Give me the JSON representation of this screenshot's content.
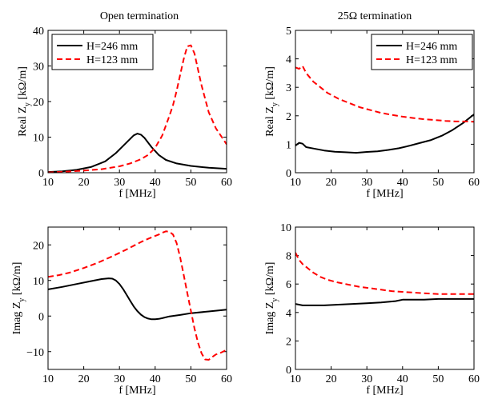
{
  "chart_data": [
    {
      "type": "line",
      "title": "Open termination",
      "xlabel": "f [MHz]",
      "ylabel": "Real Z_y [kΩ/m]",
      "ylabel_parts": [
        "Real Z",
        "y",
        "[kΩ/m]"
      ],
      "xlim": [
        10,
        60
      ],
      "ylim": [
        0,
        40
      ],
      "xticks": [
        "10",
        "20",
        "30",
        "40",
        "50",
        "60"
      ],
      "yticks": [
        "0",
        "10",
        "20",
        "30",
        "40"
      ],
      "legend": "top-left",
      "series": [
        {
          "name": "H=246 mm",
          "color": "#000000",
          "dash": "solid",
          "x": [
            10,
            14,
            18,
            22,
            26,
            29,
            31,
            33,
            34,
            35,
            36,
            37,
            39,
            41,
            43,
            46,
            50,
            55,
            60
          ],
          "y": [
            0.2,
            0.4,
            0.8,
            1.6,
            3.2,
            5.5,
            7.5,
            9.5,
            10.5,
            11.0,
            10.7,
            9.8,
            7.2,
            5.0,
            3.6,
            2.6,
            1.9,
            1.4,
            1.1
          ]
        },
        {
          "name": "H=123 mm",
          "color": "#ff0000",
          "dash": "dashed",
          "x": [
            10,
            15,
            20,
            25,
            30,
            33,
            36,
            38,
            40,
            42,
            44,
            45,
            46,
            47,
            48,
            49,
            50,
            51,
            52,
            53,
            55,
            57,
            58,
            60
          ],
          "y": [
            0.1,
            0.3,
            0.6,
            1.0,
            1.8,
            2.6,
            3.8,
            5.0,
            7.0,
            10.5,
            16,
            19,
            23,
            27.5,
            32,
            35.5,
            35.8,
            33.5,
            29,
            24.5,
            17,
            12.5,
            11,
            8
          ]
        }
      ]
    },
    {
      "type": "line",
      "title": "25Ω termination",
      "xlabel": "f [MHz]",
      "ylabel": "Real Z_y [kΩ/m]",
      "ylabel_parts": [
        "Real Z",
        "y",
        "[kΩ/m]"
      ],
      "xlim": [
        10,
        60
      ],
      "ylim": [
        0,
        5
      ],
      "xticks": [
        "10",
        "20",
        "30",
        "40",
        "50",
        "60"
      ],
      "yticks": [
        "0",
        "1",
        "2",
        "3",
        "4",
        "5"
      ],
      "legend": "top-right",
      "series": [
        {
          "name": "H=246 mm",
          "color": "#000000",
          "dash": "solid",
          "x": [
            10,
            11,
            12,
            13,
            15,
            18,
            21,
            24,
            27,
            30,
            33,
            36,
            39,
            42,
            45,
            48,
            51,
            54,
            57,
            60
          ],
          "y": [
            0.95,
            1.05,
            1.02,
            0.9,
            0.85,
            0.78,
            0.74,
            0.72,
            0.7,
            0.73,
            0.75,
            0.8,
            0.86,
            0.95,
            1.05,
            1.15,
            1.3,
            1.5,
            1.75,
            2.05
          ]
        },
        {
          "name": "H=123 mm",
          "color": "#ff0000",
          "dash": "dashed",
          "x": [
            10,
            11,
            12,
            13,
            14,
            15,
            17,
            19,
            22,
            25,
            28,
            31,
            34,
            37,
            40,
            43,
            46,
            49,
            52,
            55,
            58,
            60
          ],
          "y": [
            3.7,
            3.65,
            3.75,
            3.5,
            3.35,
            3.2,
            3.0,
            2.8,
            2.6,
            2.45,
            2.3,
            2.2,
            2.1,
            2.03,
            1.97,
            1.92,
            1.88,
            1.85,
            1.82,
            1.8,
            1.8,
            1.79
          ]
        }
      ]
    },
    {
      "type": "line",
      "title": "",
      "xlabel": "f [MHz]",
      "ylabel": "Imag Z_y [kΩ/m]",
      "ylabel_parts": [
        "Imag Z",
        "y",
        "[kΩ/m]"
      ],
      "xlim": [
        10,
        60
      ],
      "ylim": [
        -15,
        25
      ],
      "xticks": [
        "10",
        "20",
        "30",
        "40",
        "50",
        "60"
      ],
      "yticks": [
        "−10",
        "0",
        "10",
        "20"
      ],
      "ytick_values": [
        -10,
        0,
        10,
        20
      ],
      "series": [
        {
          "name": "H=246 mm",
          "color": "#000000",
          "dash": "solid",
          "x": [
            10,
            14,
            18,
            22,
            25,
            27,
            28,
            29,
            30,
            31,
            32,
            33,
            34,
            35,
            36,
            37,
            38,
            39,
            40,
            41,
            42,
            44,
            47,
            50,
            55,
            60
          ],
          "y": [
            7.5,
            8.2,
            9.0,
            9.8,
            10.4,
            10.6,
            10.5,
            10.0,
            9.0,
            7.6,
            6.0,
            4.3,
            2.7,
            1.4,
            0.4,
            -0.3,
            -0.7,
            -0.9,
            -0.9,
            -0.8,
            -0.6,
            -0.1,
            0.3,
            0.8,
            1.3,
            1.8
          ]
        },
        {
          "name": "H=123 mm",
          "color": "#ff0000",
          "dash": "dashed",
          "x": [
            10,
            13,
            16,
            20,
            24,
            28,
            32,
            36,
            38,
            40,
            41,
            42,
            43,
            44,
            45,
            46,
            47,
            48,
            49,
            50,
            51,
            52,
            53,
            54,
            55,
            56,
            57,
            58,
            60
          ],
          "y": [
            11,
            11.5,
            12.2,
            13.5,
            15.0,
            16.8,
            18.7,
            20.8,
            21.7,
            22.5,
            22.9,
            23.4,
            23.8,
            23.7,
            22.9,
            20.5,
            16.5,
            11.5,
            6.5,
            1.5,
            -3.5,
            -7.5,
            -10.5,
            -12.2,
            -12.3,
            -11.5,
            -10.8,
            -10.5,
            -9.5
          ]
        }
      ]
    },
    {
      "type": "line",
      "title": "",
      "xlabel": "f [MHz]",
      "ylabel": "Imag Z_y [kΩ/m]",
      "ylabel_parts": [
        "Imag Z",
        "y",
        "[kΩ/m]"
      ],
      "xlim": [
        10,
        60
      ],
      "ylim": [
        0,
        10
      ],
      "xticks": [
        "10",
        "20",
        "30",
        "40",
        "50",
        "60"
      ],
      "yticks": [
        "0",
        "2",
        "4",
        "6",
        "8",
        "10"
      ],
      "series": [
        {
          "name": "H=246 mm",
          "color": "#000000",
          "dash": "solid",
          "x": [
            10,
            12,
            15,
            18,
            22,
            26,
            30,
            34,
            38,
            40,
            42,
            46,
            50,
            55,
            60
          ],
          "y": [
            4.6,
            4.5,
            4.5,
            4.5,
            4.55,
            4.6,
            4.65,
            4.7,
            4.8,
            4.9,
            4.9,
            4.9,
            4.95,
            4.95,
            4.95
          ]
        },
        {
          "name": "H=123 mm",
          "color": "#ff0000",
          "dash": "dashed",
          "x": [
            10,
            11,
            12,
            13,
            14,
            15,
            17,
            19,
            22,
            25,
            28,
            31,
            34,
            37,
            40,
            43,
            46,
            50,
            54,
            57,
            60
          ],
          "y": [
            8.2,
            7.7,
            7.4,
            7.2,
            7.0,
            6.8,
            6.5,
            6.3,
            6.1,
            5.95,
            5.8,
            5.7,
            5.6,
            5.5,
            5.45,
            5.4,
            5.35,
            5.3,
            5.3,
            5.3,
            5.3
          ]
        }
      ]
    }
  ]
}
